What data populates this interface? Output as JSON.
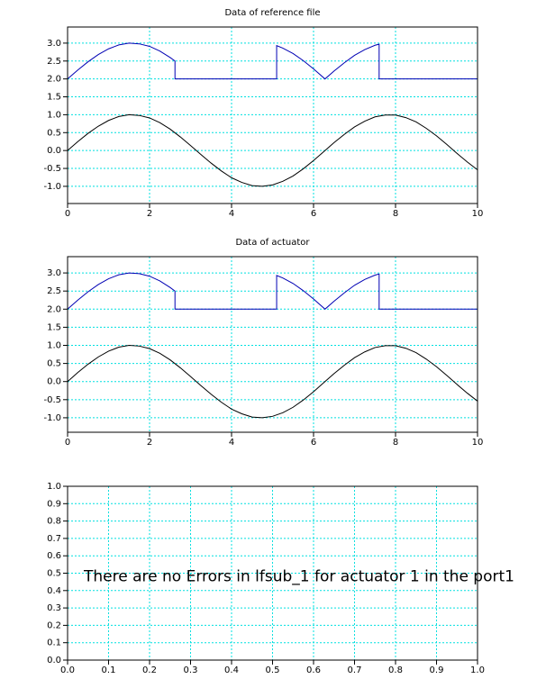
{
  "chart_data": [
    {
      "type": "line",
      "title": "Data of reference file",
      "xlim": [
        0,
        10
      ],
      "xticks": [
        0,
        2,
        4,
        6,
        8,
        10
      ],
      "ylim": [
        -1.48,
        3.45
      ],
      "yticks": [
        {
          "value": -1,
          "label": "-1.0"
        },
        {
          "value": -0.5,
          "label": "-0.5"
        },
        {
          "value": 0,
          "label": "0.0"
        },
        {
          "value": 0.5,
          "label": "0.5"
        },
        {
          "value": 1,
          "label": "1.0"
        },
        {
          "value": 1.5,
          "label": "1.5"
        },
        {
          "value": 2,
          "label": "2.0"
        },
        {
          "value": 2.5,
          "label": "2.5"
        },
        {
          "value": 3,
          "label": "3.0"
        }
      ],
      "grid": true,
      "series": [
        {
          "color": "#0000b4",
          "x": [
            0,
            0.25,
            0.5,
            0.75,
            1,
            1.25,
            1.5,
            1.75,
            2,
            2.25,
            2.5,
            2.62,
            2.62,
            5.1,
            5.1,
            5.25,
            5.5,
            5.75,
            6,
            6.28,
            6.5,
            6.75,
            7,
            7.25,
            7.5,
            7.6,
            7.6,
            10
          ],
          "values": [
            2.0,
            2.25,
            2.48,
            2.68,
            2.84,
            2.95,
            3.0,
            2.98,
            2.91,
            2.78,
            2.6,
            2.5,
            2.0,
            2.0,
            2.93,
            2.86,
            2.71,
            2.51,
            2.28,
            2.0,
            2.22,
            2.45,
            2.66,
            2.82,
            2.94,
            2.97,
            2.0,
            2.0
          ]
        },
        {
          "color": "#000000",
          "x": [
            0,
            0.25,
            0.5,
            0.75,
            1,
            1.25,
            1.5,
            1.75,
            2,
            2.25,
            2.5,
            2.75,
            3,
            3.25,
            3.5,
            3.75,
            4,
            4.25,
            4.5,
            4.75,
            5,
            5.25,
            5.5,
            5.75,
            6,
            6.25,
            6.5,
            6.75,
            7,
            7.25,
            7.5,
            7.75,
            8,
            8.25,
            8.5,
            8.75,
            9,
            9.25,
            9.5,
            9.75,
            10
          ],
          "values": [
            0,
            0.25,
            0.48,
            0.68,
            0.84,
            0.95,
            1.0,
            0.98,
            0.91,
            0.78,
            0.6,
            0.38,
            0.14,
            -0.11,
            -0.35,
            -0.57,
            -0.76,
            -0.89,
            -0.98,
            -1.0,
            -0.96,
            -0.86,
            -0.71,
            -0.51,
            -0.28,
            -0.03,
            0.22,
            0.45,
            0.66,
            0.82,
            0.94,
            0.99,
            0.99,
            0.92,
            0.8,
            0.62,
            0.41,
            0.17,
            -0.08,
            -0.32,
            -0.54
          ]
        }
      ]
    },
    {
      "type": "line",
      "title": "Data of actuator",
      "xlim": [
        0,
        10
      ],
      "xticks": [
        0,
        2,
        4,
        6,
        8,
        10
      ],
      "ylim": [
        -1.4,
        3.45
      ],
      "yticks": [
        {
          "value": -1,
          "label": "-1.0"
        },
        {
          "value": -0.5,
          "label": "-0.5"
        },
        {
          "value": 0,
          "label": "0.0"
        },
        {
          "value": 0.5,
          "label": "0.5"
        },
        {
          "value": 1,
          "label": "1.0"
        },
        {
          "value": 1.5,
          "label": "1.5"
        },
        {
          "value": 2,
          "label": "2.0"
        },
        {
          "value": 2.5,
          "label": "2.5"
        },
        {
          "value": 3,
          "label": "3.0"
        }
      ],
      "grid": true,
      "series": [
        {
          "color": "#0000b4",
          "x": [
            0,
            0.25,
            0.5,
            0.75,
            1,
            1.25,
            1.5,
            1.75,
            2,
            2.25,
            2.5,
            2.62,
            2.62,
            5.1,
            5.1,
            5.25,
            5.5,
            5.75,
            6,
            6.28,
            6.5,
            6.75,
            7,
            7.25,
            7.5,
            7.6,
            7.6,
            10
          ],
          "values": [
            2.0,
            2.25,
            2.48,
            2.68,
            2.84,
            2.95,
            3.0,
            2.98,
            2.91,
            2.78,
            2.6,
            2.5,
            2.0,
            2.0,
            2.93,
            2.86,
            2.71,
            2.51,
            2.28,
            2.0,
            2.22,
            2.45,
            2.66,
            2.82,
            2.94,
            2.97,
            2.0,
            2.0
          ]
        },
        {
          "color": "#000000",
          "x": [
            0,
            0.25,
            0.5,
            0.75,
            1,
            1.25,
            1.5,
            1.75,
            2,
            2.25,
            2.5,
            2.75,
            3,
            3.25,
            3.5,
            3.75,
            4,
            4.25,
            4.5,
            4.75,
            5,
            5.25,
            5.5,
            5.75,
            6,
            6.25,
            6.5,
            6.75,
            7,
            7.25,
            7.5,
            7.75,
            8,
            8.25,
            8.5,
            8.75,
            9,
            9.25,
            9.5,
            9.75,
            10
          ],
          "values": [
            0,
            0.25,
            0.48,
            0.68,
            0.84,
            0.95,
            1.0,
            0.98,
            0.91,
            0.78,
            0.6,
            0.38,
            0.14,
            -0.11,
            -0.35,
            -0.57,
            -0.76,
            -0.89,
            -0.98,
            -1.0,
            -0.96,
            -0.86,
            -0.71,
            -0.51,
            -0.28,
            -0.03,
            0.22,
            0.45,
            0.66,
            0.82,
            0.94,
            0.99,
            0.99,
            0.92,
            0.8,
            0.62,
            0.41,
            0.17,
            -0.08,
            -0.32,
            -0.54
          ]
        }
      ]
    },
    {
      "type": "line",
      "annotation": "There are no Errors in lfsub_1 for actuator 1 in the port1",
      "xlim": [
        0,
        1
      ],
      "xticks": [
        {
          "value": 0,
          "label": "0.0"
        },
        {
          "value": 0.1,
          "label": "0.1"
        },
        {
          "value": 0.2,
          "label": "0.2"
        },
        {
          "value": 0.3,
          "label": "0.3"
        },
        {
          "value": 0.4,
          "label": "0.4"
        },
        {
          "value": 0.5,
          "label": "0.5"
        },
        {
          "value": 0.6,
          "label": "0.6"
        },
        {
          "value": 0.7,
          "label": "0.7"
        },
        {
          "value": 0.8,
          "label": "0.8"
        },
        {
          "value": 0.9,
          "label": "0.9"
        },
        {
          "value": 1,
          "label": "1.0"
        }
      ],
      "ylim": [
        0,
        1
      ],
      "yticks": [
        {
          "value": 0,
          "label": "0.0"
        },
        {
          "value": 0.1,
          "label": "0.1"
        },
        {
          "value": 0.2,
          "label": "0.2"
        },
        {
          "value": 0.3,
          "label": "0.3"
        },
        {
          "value": 0.4,
          "label": "0.4"
        },
        {
          "value": 0.5,
          "label": "0.5"
        },
        {
          "value": 0.6,
          "label": "0.6"
        },
        {
          "value": 0.7,
          "label": "0.7"
        },
        {
          "value": 0.8,
          "label": "0.8"
        },
        {
          "value": 0.9,
          "label": "0.9"
        },
        {
          "value": 1,
          "label": "1.0"
        }
      ],
      "grid": true
    }
  ]
}
